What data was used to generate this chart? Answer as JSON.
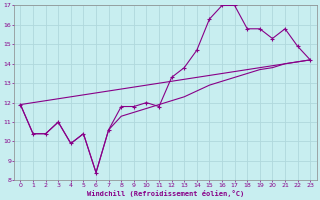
{
  "xlabel": "Windchill (Refroidissement éolien,°C)",
  "bg_color": "#c8eef0",
  "grid_color": "#b0d8dc",
  "line_color": "#880088",
  "text_color": "#880088",
  "spine_color": "#888888",
  "xlim": [
    -0.5,
    23.5
  ],
  "ylim": [
    8,
    17
  ],
  "xticks": [
    0,
    1,
    2,
    3,
    4,
    5,
    6,
    7,
    8,
    9,
    10,
    11,
    12,
    13,
    14,
    15,
    16,
    17,
    18,
    19,
    20,
    21,
    22,
    23
  ],
  "yticks": [
    8,
    9,
    10,
    11,
    12,
    13,
    14,
    15,
    16,
    17
  ],
  "series1_x": [
    0,
    1,
    2,
    3,
    4,
    5,
    6,
    7,
    8,
    9,
    10,
    11,
    12,
    13,
    14,
    15,
    16,
    17,
    18,
    19,
    20,
    21,
    22,
    23
  ],
  "series1_y": [
    11.9,
    10.4,
    10.4,
    11.0,
    9.9,
    10.4,
    8.4,
    10.6,
    11.8,
    11.8,
    12.0,
    11.8,
    13.3,
    13.8,
    14.7,
    16.3,
    17.0,
    17.0,
    15.8,
    15.8,
    15.3,
    15.8,
    14.9,
    14.2
  ],
  "series2_x": [
    0,
    1,
    2,
    3,
    4,
    5,
    6,
    7,
    8,
    9,
    10,
    11,
    12,
    13,
    14,
    15,
    16,
    17,
    18,
    19,
    20,
    21,
    22,
    23
  ],
  "series2_y": [
    11.9,
    10.4,
    10.4,
    11.0,
    9.9,
    10.4,
    8.4,
    10.6,
    11.3,
    11.5,
    11.7,
    11.9,
    12.1,
    12.3,
    12.6,
    12.9,
    13.1,
    13.3,
    13.5,
    13.7,
    13.8,
    14.0,
    14.1,
    14.2
  ],
  "series3_x": [
    0,
    23
  ],
  "series3_y": [
    11.9,
    14.2
  ]
}
